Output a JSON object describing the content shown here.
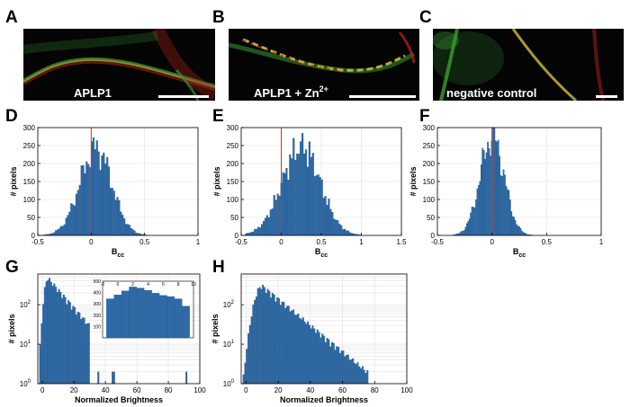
{
  "panel_letters": [
    "A",
    "B",
    "C",
    "D",
    "E",
    "F",
    "G",
    "H"
  ],
  "micrographs": [
    {
      "id": "A",
      "caption": "APLP1",
      "sup": ""
    },
    {
      "id": "B",
      "caption": "APLP1 + Zn",
      "sup": "2+"
    },
    {
      "id": "C",
      "caption": "negative control",
      "sup": ""
    }
  ],
  "colors": {
    "bar": "#2e6aa6",
    "bar_edge": "#1d4a78",
    "marker": "#e0301e",
    "membrane_green": "#3fae3a",
    "membrane_red": "#d02a1e",
    "overlap": "#e8d040"
  },
  "chart_data": [
    {
      "id": "D",
      "type": "bar",
      "title": "",
      "xlabel": "B",
      "xlabel_sub": "cc",
      "ylabel": "# pixels",
      "xlim": [
        -0.5,
        1
      ],
      "ylim": [
        0,
        300
      ],
      "xticks": [
        -0.5,
        0,
        0.5,
        1
      ],
      "xtick_labels": [
        "-0.5",
        "0",
        "0.5",
        "1"
      ],
      "yticks": [
        0,
        50,
        100,
        150,
        200,
        250,
        300
      ],
      "ytick_labels": [
        "0",
        "50",
        "100",
        "150",
        "200",
        "250",
        "300"
      ],
      "yscale": "linear",
      "marker_x": 0,
      "hist": {
        "mu": 0.03,
        "sigma": 0.15,
        "skew": 0.25,
        "peak": 268,
        "start": -0.45,
        "end": 0.75,
        "width": 0.016
      }
    },
    {
      "id": "E",
      "type": "bar",
      "title": "",
      "xlabel": "B",
      "xlabel_sub": "cc",
      "ylabel": "# pixels",
      "xlim": [
        -0.5,
        1.5
      ],
      "ylim": [
        0,
        300
      ],
      "xticks": [
        -0.5,
        0,
        0.5,
        1,
        1.5
      ],
      "xtick_labels": [
        "-0.5",
        "0",
        "0.5",
        "1",
        "1.5"
      ],
      "yticks": [
        0,
        50,
        100,
        150,
        200,
        250,
        300
      ],
      "ytick_labels": [
        "0",
        "50",
        "100",
        "150",
        "200",
        "250",
        "300"
      ],
      "yscale": "linear",
      "marker_x": 0,
      "hist": {
        "mu": 0.22,
        "sigma": 0.24,
        "skew": 0.35,
        "peak": 272,
        "start": -0.45,
        "end": 1.25,
        "width": 0.022
      }
    },
    {
      "id": "F",
      "type": "bar",
      "title": "",
      "xlabel": "B",
      "xlabel_sub": "cc",
      "ylabel": "# pixels",
      "xlim": [
        -0.5,
        1
      ],
      "ylim": [
        0,
        300
      ],
      "xticks": [
        -0.5,
        0,
        0.5,
        1
      ],
      "xtick_labels": [
        "-0.5",
        "0",
        "0.5",
        "1"
      ],
      "yticks": [
        0,
        50,
        100,
        150,
        200,
        250,
        300
      ],
      "ytick_labels": [
        "0",
        "50",
        "100",
        "150",
        "200",
        "250",
        "300"
      ],
      "yscale": "linear",
      "marker_x": 0,
      "hist": {
        "mu": 0.0,
        "sigma": 0.11,
        "skew": 0.05,
        "peak": 305,
        "start": -0.38,
        "end": 0.46,
        "width": 0.012
      }
    },
    {
      "id": "G",
      "type": "bar",
      "title": "",
      "xlabel": "Normalized Brightness",
      "xlabel_sub": "",
      "ylabel": "# pixels",
      "xlim": [
        -3,
        100
      ],
      "ylim": [
        1,
        600
      ],
      "xticks": [
        0,
        20,
        40,
        60,
        80,
        100
      ],
      "xtick_labels": [
        "0",
        "20",
        "40",
        "60",
        "80",
        "100"
      ],
      "yticks": [
        1,
        10,
        100
      ],
      "ytick_labels": [
        "10",
        "10",
        "10"
      ],
      "ytick_exp": [
        "0",
        "1",
        "2"
      ],
      "yscale": "log",
      "marker_x": null,
      "hist": {
        "mode": 3.5,
        "peak": 440,
        "decay": 9.5,
        "rise": 2.5,
        "start": -2,
        "end": 30,
        "width": 1,
        "outliers": [
          [
            35.5,
            2
          ],
          [
            44.5,
            2
          ],
          [
            45.5,
            2
          ],
          [
            91.5,
            2
          ]
        ]
      },
      "inset": {
        "xlim": [
          -2,
          10
        ],
        "ylim": [
          0,
          500
        ],
        "xticks": [
          -2,
          0,
          2,
          4,
          6,
          8,
          10
        ],
        "xtick_labels": [
          "-2",
          "0",
          "2",
          "4",
          "6",
          "8",
          "10"
        ],
        "yticks": [
          100,
          200,
          300,
          400,
          500
        ],
        "ytick_labels": [
          "100",
          "200",
          "300",
          "400",
          "500"
        ],
        "values": [
          [
            "-1",
            345
          ],
          [
            "0",
            380
          ],
          [
            "1",
            415
          ],
          [
            "2",
            450
          ],
          [
            "3",
            440
          ],
          [
            "4",
            420
          ],
          [
            "5",
            395
          ],
          [
            "6",
            375
          ],
          [
            "7",
            365
          ],
          [
            "8",
            345
          ],
          [
            "9",
            280
          ]
        ]
      }
    },
    {
      "id": "H",
      "type": "bar",
      "title": "",
      "xlabel": "Normalized Brightness",
      "xlabel_sub": "",
      "ylabel": "# pixels",
      "xlim": [
        -3,
        100
      ],
      "ylim": [
        1,
        600
      ],
      "xticks": [
        0,
        20,
        40,
        60,
        80,
        100
      ],
      "xtick_labels": [
        "0",
        "20",
        "40",
        "60",
        "80",
        "100"
      ],
      "yticks": [
        1,
        10,
        100
      ],
      "ytick_labels": [
        "10",
        "10",
        "10"
      ],
      "ytick_exp": [
        "0",
        "1",
        "2"
      ],
      "yscale": "log",
      "marker_x": null,
      "hist": {
        "mode": 10,
        "peak": 280,
        "decay": 13,
        "rise": 5,
        "start": -2,
        "end": 76,
        "width": 1,
        "outliers": []
      }
    }
  ]
}
